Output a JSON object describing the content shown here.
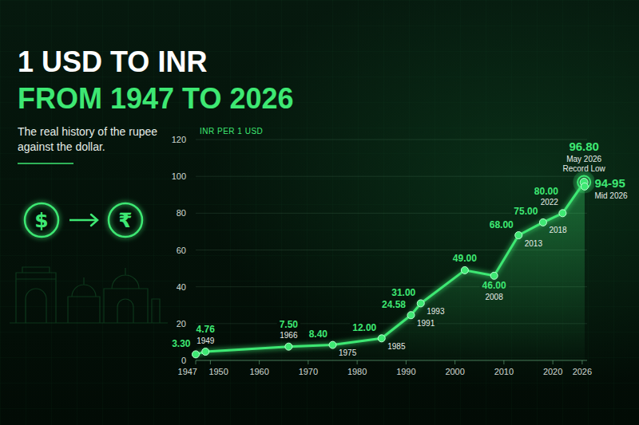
{
  "header": {
    "title_lines": [
      "1 USD TO INR",
      "FROM 1947 TO 2026"
    ],
    "subtitle": "The real history of the rupee against the dollar.",
    "symbols": [
      "$",
      "₹"
    ]
  },
  "chart_data": {
    "type": "line",
    "ylabel": "INR PER 1 USD",
    "x": [
      1947,
      1949,
      1966,
      1975,
      1985,
      1991,
      1993,
      2002,
      2008,
      2013,
      2018,
      2022,
      2026.375,
      2026.5
    ],
    "values": [
      3.3,
      4.76,
      7.5,
      8.4,
      12,
      24.58,
      31,
      49,
      46,
      68,
      75,
      80,
      96.8,
      94.5
    ],
    "value_labels": [
      "3.30",
      "4.76",
      "7.50",
      "8.40",
      "12.00",
      "24.58",
      "31.00",
      "49.00",
      "46.00",
      "68.00",
      "75.00",
      "80.00",
      "96.80",
      "94-95"
    ],
    "point_labels": [
      null,
      "1949",
      "1966",
      "1975",
      "1985",
      "1991",
      "1993",
      null,
      "2008",
      "2013",
      "2018",
      "2022",
      [
        "May 2026",
        "Record Low"
      ],
      "Mid 2026"
    ],
    "color": "#3ee873",
    "marker": "circle",
    "line_style": "solid",
    "xlim": [
      1947,
      2027
    ],
    "xticks": [
      1947,
      1950,
      1960,
      1970,
      1980,
      1990,
      2000,
      2010,
      2020,
      2026
    ],
    "ylim": [
      0,
      120
    ],
    "yticks": [
      0,
      20,
      40,
      60,
      80,
      100,
      120
    ],
    "grid": true,
    "data_labels": true
  }
}
